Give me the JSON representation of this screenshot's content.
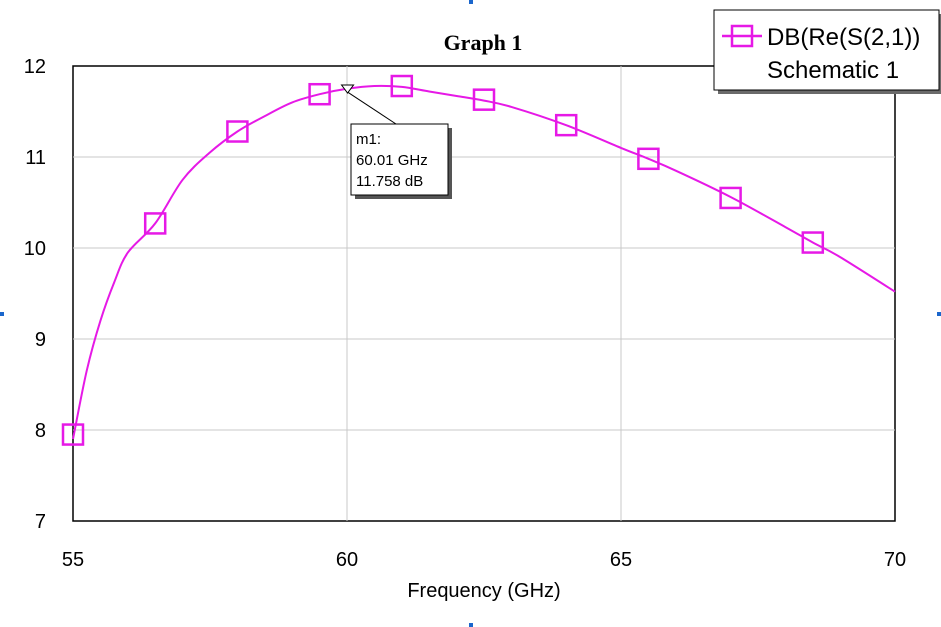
{
  "chart_data": {
    "type": "line",
    "title": "Graph 1",
    "xlabel": "Frequency (GHz)",
    "ylabel": "",
    "xlim": [
      55,
      70
    ],
    "ylim": [
      7,
      12
    ],
    "x_ticks": [
      55,
      60,
      65,
      70
    ],
    "y_ticks": [
      7,
      8,
      9,
      10,
      11,
      12
    ],
    "grid": true,
    "legend_position": "top-right",
    "series": [
      {
        "name": "DB(Re(S(2,1))",
        "sublabel": "Schematic 1",
        "color": "#e619e6",
        "marker": "square",
        "x": [
          55.0,
          55.25,
          55.5,
          55.75,
          56.0,
          56.5,
          57.0,
          57.5,
          58.0,
          58.5,
          59.0,
          59.5,
          60.0,
          60.5,
          61.0,
          61.5,
          62.0,
          62.5,
          63.0,
          64.0,
          65.0,
          65.5,
          66.0,
          67.0,
          68.0,
          68.5,
          69.0,
          70.0
        ],
        "y": [
          7.9,
          8.65,
          9.2,
          9.62,
          9.95,
          10.27,
          10.75,
          11.05,
          11.28,
          11.45,
          11.6,
          11.69,
          11.75,
          11.78,
          11.77,
          11.72,
          11.67,
          11.62,
          11.55,
          11.35,
          11.1,
          10.98,
          10.85,
          10.56,
          10.23,
          10.06,
          9.9,
          9.52
        ]
      }
    ],
    "marker_points": {
      "x": [
        55.0,
        56.5,
        58.0,
        59.5,
        61.0,
        62.5,
        64.0,
        65.5,
        67.0,
        68.5
      ],
      "y": [
        7.95,
        10.27,
        11.28,
        11.69,
        11.78,
        11.63,
        11.35,
        10.98,
        10.55,
        10.06
      ]
    },
    "annotation": {
      "x": 60.01,
      "y": 11.758,
      "lines": [
        "m1:",
        "60.01 GHz",
        "11.758 dB"
      ]
    }
  }
}
